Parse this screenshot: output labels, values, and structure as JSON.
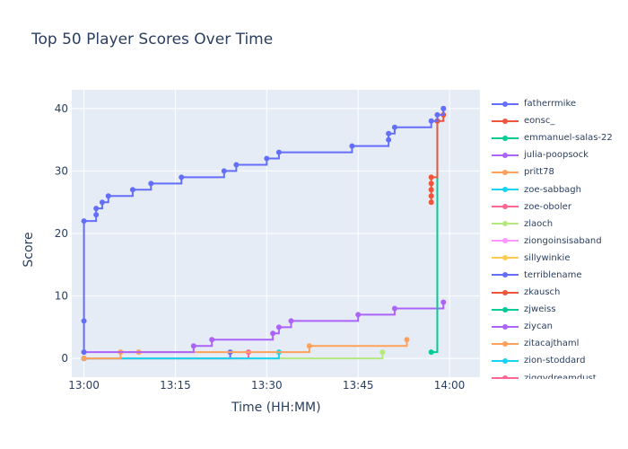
{
  "chart_data": {
    "type": "line",
    "line_shape": "step",
    "markers": true,
    "title": "Top 50 Player Scores Over Time",
    "xlabel": "Time (HH:MM)",
    "ylabel": "Score",
    "xlim": [
      "12:58",
      "14:05"
    ],
    "ylim": [
      -3,
      43
    ],
    "x_ticks": [
      "13:00",
      "13:15",
      "13:30",
      "13:45",
      "14:00"
    ],
    "y_ticks": [
      0,
      10,
      20,
      30,
      40
    ],
    "grid": true,
    "plot_background": "#e5ecf6",
    "legend_position": "right",
    "series": [
      {
        "name": "fatherrmike",
        "color": "#636efa",
        "points": [
          [
            "13:00",
            1
          ],
          [
            "13:00",
            6
          ],
          [
            "13:00",
            22
          ],
          [
            "13:02",
            23
          ],
          [
            "13:02",
            24
          ],
          [
            "13:03",
            25
          ],
          [
            "13:04",
            26
          ],
          [
            "13:08",
            27
          ],
          [
            "13:11",
            28
          ],
          [
            "13:16",
            29
          ],
          [
            "13:23",
            30
          ],
          [
            "13:25",
            31
          ],
          [
            "13:30",
            32
          ],
          [
            "13:32",
            33
          ],
          [
            "13:44",
            34
          ],
          [
            "13:50",
            35
          ],
          [
            "13:50",
            36
          ],
          [
            "13:51",
            37
          ],
          [
            "13:57",
            38
          ],
          [
            "13:58",
            39
          ],
          [
            "13:59",
            40
          ]
        ]
      },
      {
        "name": "eonsc_",
        "color": "#ef553b",
        "points": [
          [
            "13:57",
            25
          ],
          [
            "13:57",
            26
          ],
          [
            "13:57",
            27
          ],
          [
            "13:57",
            28
          ],
          [
            "13:57",
            29
          ],
          [
            "13:58",
            38
          ],
          [
            "13:59",
            39
          ],
          [
            "13:59",
            40
          ]
        ]
      },
      {
        "name": "emmanuel-salas-22",
        "color": "#00cc96",
        "points": [
          [
            "13:57",
            1
          ],
          [
            "13:58",
            38
          ]
        ]
      },
      {
        "name": "julia-poopsock",
        "color": "#ab63fa",
        "points": [
          [
            "13:00",
            1
          ],
          [
            "13:18",
            2
          ],
          [
            "13:21",
            3
          ],
          [
            "13:31",
            4
          ],
          [
            "13:32",
            5
          ],
          [
            "13:34",
            6
          ],
          [
            "13:45",
            7
          ],
          [
            "13:51",
            8
          ],
          [
            "13:59",
            9
          ]
        ]
      },
      {
        "name": "pritt78",
        "color": "#ffa15a",
        "points": [
          [
            "13:00",
            0
          ],
          [
            "13:06",
            1
          ],
          [
            "13:09",
            1
          ],
          [
            "13:37",
            2
          ],
          [
            "13:53",
            3
          ]
        ]
      },
      {
        "name": "zoe-sabbagh",
        "color": "#19d3f3",
        "points": [
          [
            "13:00",
            0
          ],
          [
            "13:32",
            1
          ]
        ]
      },
      {
        "name": "zoe-oboler",
        "color": "#ff6692",
        "points": [
          [
            "13:00",
            0
          ],
          [
            "13:27",
            1
          ]
        ]
      },
      {
        "name": "zlaoch",
        "color": "#b6e880",
        "points": [
          [
            "13:00",
            0
          ],
          [
            "13:49",
            1
          ]
        ]
      },
      {
        "name": "ziongoinsisaband",
        "color": "#ff97ff",
        "points": [
          [
            "13:00",
            0
          ]
        ]
      },
      {
        "name": "sillywinkie",
        "color": "#fecb52",
        "points": [
          [
            "13:00",
            0
          ]
        ]
      },
      {
        "name": "terriblename",
        "color": "#636efa",
        "points": [
          [
            "13:00",
            0
          ],
          [
            "13:24",
            1
          ]
        ]
      },
      {
        "name": "zkausch",
        "color": "#ef553b",
        "points": [
          [
            "13:00",
            0
          ]
        ]
      },
      {
        "name": "zjweiss",
        "color": "#00cc96",
        "points": [
          [
            "13:00",
            0
          ]
        ]
      },
      {
        "name": "ziycan",
        "color": "#ab63fa",
        "points": [
          [
            "13:00",
            0
          ]
        ]
      },
      {
        "name": "zitacajthaml",
        "color": "#ffa15a",
        "points": [
          [
            "13:00",
            0
          ]
        ]
      },
      {
        "name": "zion-stoddard",
        "color": "#19d3f3",
        "points": [
          [
            "13:00",
            0
          ]
        ]
      },
      {
        "name": "ziggydreamdust",
        "color": "#ff6692",
        "points": [
          [
            "13:00",
            0
          ]
        ]
      }
    ]
  }
}
